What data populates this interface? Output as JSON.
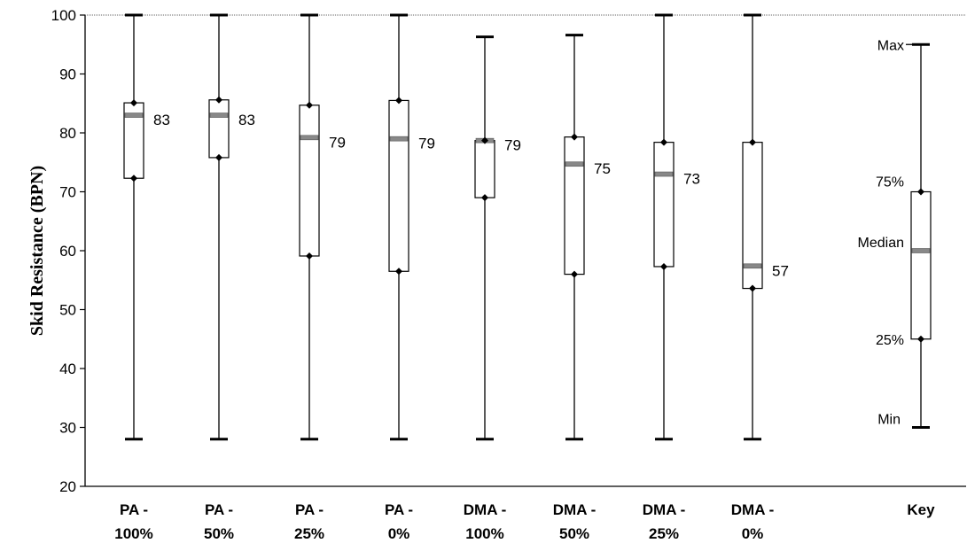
{
  "chart_data": {
    "type": "box",
    "ylabel": "Skid Resistance (BPN)",
    "ylim": [
      20,
      100
    ],
    "yticks": [
      "20",
      "30",
      "40",
      "50",
      "60",
      "70",
      "80",
      "90",
      "100"
    ],
    "grid": false,
    "categories": [
      {
        "line1": "PA -",
        "line2": "100%"
      },
      {
        "line1": "PA -",
        "line2": "50%"
      },
      {
        "line1": "PA -",
        "line2": "25%"
      },
      {
        "line1": "PA -",
        "line2": "0%"
      },
      {
        "line1": "DMA -",
        "line2": "100%"
      },
      {
        "line1": "DMA -",
        "line2": "50%"
      },
      {
        "line1": "DMA -",
        "line2": "25%"
      },
      {
        "line1": "DMA -",
        "line2": "0%"
      }
    ],
    "series": [
      {
        "min": 28,
        "q1": 72.3,
        "median": 83,
        "q3": 85.1,
        "max": 100,
        "label": "83"
      },
      {
        "min": 28,
        "q1": 75.8,
        "median": 83,
        "q3": 85.6,
        "max": 100,
        "label": "83"
      },
      {
        "min": 28,
        "q1": 59.1,
        "median": 79.2,
        "q3": 84.7,
        "max": 100,
        "label": "79"
      },
      {
        "min": 28,
        "q1": 56.5,
        "median": 79,
        "q3": 85.5,
        "max": 100,
        "label": "79"
      },
      {
        "min": 28,
        "q1": 69,
        "median": 78.7,
        "q3": 78.7,
        "max": 96.3,
        "label": "79"
      },
      {
        "min": 28,
        "q1": 56,
        "median": 74.7,
        "q3": 79.3,
        "max": 96.6,
        "label": "75"
      },
      {
        "min": 28,
        "q1": 57.3,
        "median": 73,
        "q3": 78.4,
        "max": 100,
        "label": "73"
      },
      {
        "min": 28,
        "q1": 53.6,
        "median": 57.4,
        "q3": 78.4,
        "max": 100,
        "label": "57"
      }
    ],
    "key": {
      "category": "Key",
      "min": 30,
      "q1": 45,
      "median": 60,
      "q3": 70,
      "max": 95,
      "labels": {
        "max": "Max",
        "q3": "75%",
        "median": "Median",
        "q1": "25%",
        "min": "Min"
      }
    }
  }
}
